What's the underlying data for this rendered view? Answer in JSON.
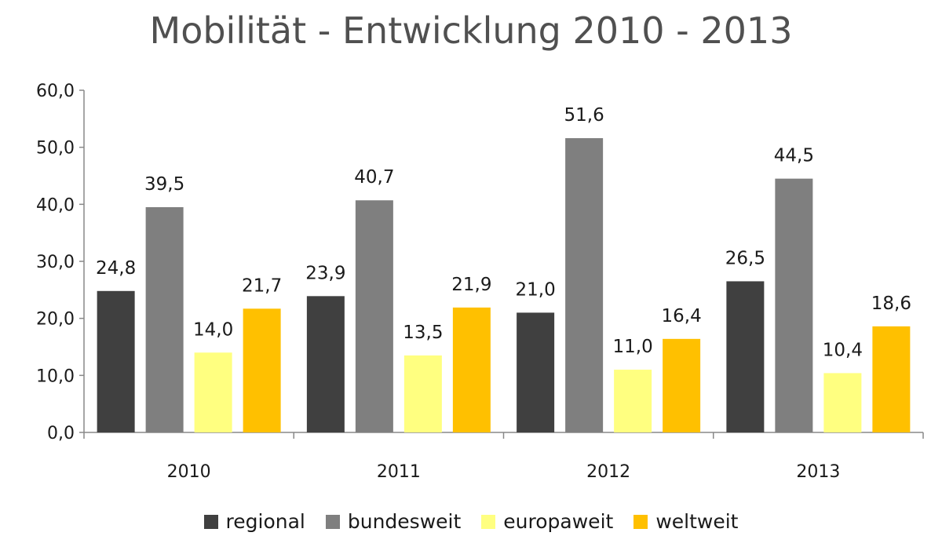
{
  "chart_data": {
    "type": "bar",
    "title": "Mobilität - Entwicklung 2010 - 2013",
    "categories": [
      "2010",
      "2011",
      "2012",
      "2013"
    ],
    "series": [
      {
        "name": "regional",
        "color": "#404040",
        "values": [
          24.8,
          23.9,
          21.0,
          26.5
        ],
        "labels": [
          "24,8",
          "23,9",
          "21,0",
          "26,5"
        ]
      },
      {
        "name": "bundesweit",
        "color": "#7f7f7f",
        "values": [
          39.5,
          40.7,
          51.6,
          44.5
        ],
        "labels": [
          "39,5",
          "40,7",
          "51,6",
          "44,5"
        ]
      },
      {
        "name": "europaweit",
        "color": "#ffff80",
        "values": [
          14.0,
          13.5,
          11.0,
          10.4
        ],
        "labels": [
          "14,0",
          "13,5",
          "11,0",
          "10,4"
        ]
      },
      {
        "name": "weltweit",
        "color": "#ffc000",
        "values": [
          21.7,
          21.9,
          16.4,
          18.6
        ],
        "labels": [
          "21,7",
          "21,9",
          "16,4",
          "18,6"
        ]
      }
    ],
    "ylim": [
      0,
      60
    ],
    "yticks": [
      "0,0",
      "10,0",
      "20,0",
      "30,0",
      "40,0",
      "50,0",
      "60,0"
    ],
    "grid": false,
    "legend": "bottom",
    "xlabel": "",
    "ylabel": ""
  }
}
